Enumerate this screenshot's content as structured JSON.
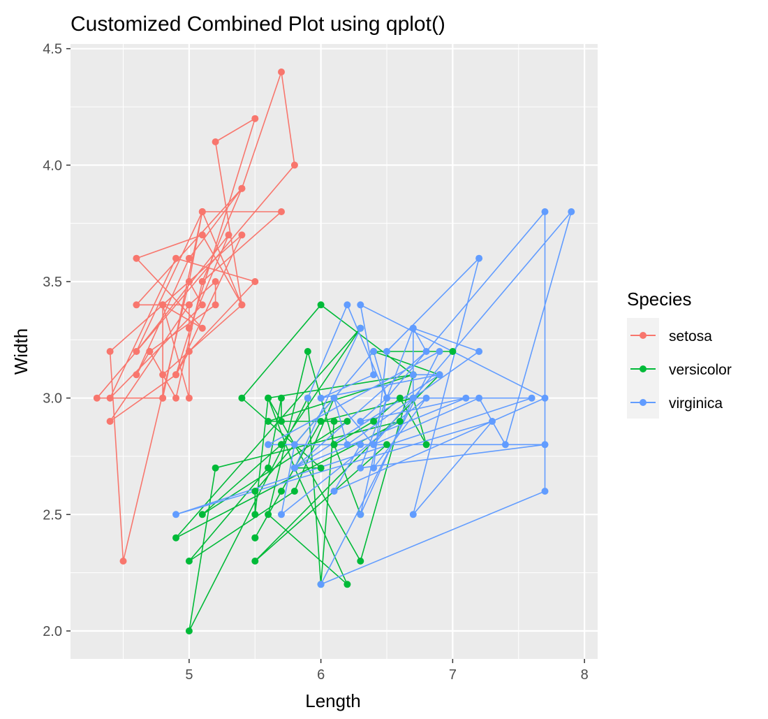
{
  "chart_data": {
    "type": "line",
    "title": "Customized Combined Plot using qplot()",
    "xlabel": "Length",
    "ylabel": "Width",
    "xlim": [
      4.1,
      8.1
    ],
    "ylim": [
      1.88,
      4.52
    ],
    "x_ticks": [
      5,
      6,
      7,
      8
    ],
    "y_ticks": [
      2.0,
      2.5,
      3.0,
      3.5,
      4.0,
      4.5
    ],
    "x_tick_labels": [
      "5",
      "6",
      "7",
      "8"
    ],
    "y_tick_labels": [
      "2.0",
      "2.5",
      "3.0",
      "3.5",
      "4.0",
      "4.5"
    ],
    "grid": true,
    "markers": true,
    "legend": {
      "title": "Species",
      "position": "right"
    },
    "series": [
      {
        "name": "setosa",
        "color": "#F8766D",
        "x": [
          5.1,
          4.9,
          4.7,
          4.6,
          5.0,
          5.4,
          4.6,
          5.0,
          4.4,
          4.9,
          5.4,
          4.8,
          4.8,
          4.3,
          5.8,
          5.7,
          5.4,
          5.1,
          5.7,
          5.1,
          5.4,
          5.1,
          4.6,
          5.1,
          4.8,
          5.0,
          5.0,
          5.2,
          5.2,
          4.7,
          4.8,
          5.4,
          5.2,
          5.5,
          4.9,
          5.0,
          5.5,
          4.9,
          4.4,
          5.1,
          5.0,
          4.5,
          4.4,
          5.0,
          5.1,
          4.8,
          5.1,
          4.6,
          5.3,
          5.0
        ],
        "y": [
          3.5,
          3.0,
          3.2,
          3.1,
          3.6,
          3.9,
          3.4,
          3.4,
          2.9,
          3.1,
          3.7,
          3.4,
          3.0,
          3.0,
          4.0,
          4.4,
          3.9,
          3.5,
          3.8,
          3.8,
          3.4,
          3.7,
          3.6,
          3.3,
          3.4,
          3.0,
          3.4,
          3.5,
          3.4,
          3.2,
          3.1,
          3.4,
          4.1,
          4.2,
          3.1,
          3.2,
          3.5,
          3.6,
          3.0,
          3.4,
          3.5,
          2.3,
          3.2,
          3.5,
          3.8,
          3.0,
          3.8,
          3.2,
          3.7,
          3.3
        ]
      },
      {
        "name": "versicolor",
        "color": "#00BA38",
        "x": [
          7.0,
          6.4,
          6.9,
          5.5,
          6.5,
          5.7,
          6.3,
          4.9,
          6.6,
          5.2,
          5.0,
          5.9,
          6.0,
          6.1,
          5.6,
          6.7,
          5.6,
          5.8,
          6.2,
          5.6,
          5.9,
          6.1,
          6.3,
          6.1,
          6.4,
          6.6,
          6.8,
          6.7,
          6.0,
          5.7,
          5.5,
          5.5,
          5.8,
          6.0,
          5.4,
          6.0,
          6.7,
          6.3,
          5.6,
          5.5,
          5.5,
          6.1,
          5.8,
          5.0,
          5.6,
          5.7,
          5.7,
          6.2,
          5.1,
          5.7
        ],
        "y": [
          3.2,
          3.2,
          3.1,
          2.3,
          2.8,
          2.8,
          3.3,
          2.4,
          2.9,
          2.7,
          2.0,
          3.0,
          2.2,
          2.9,
          2.9,
          3.1,
          3.0,
          2.7,
          2.2,
          2.5,
          3.2,
          2.8,
          2.5,
          2.8,
          2.9,
          3.0,
          2.8,
          3.0,
          2.9,
          2.6,
          2.4,
          2.4,
          2.7,
          2.7,
          3.0,
          3.4,
          3.1,
          2.3,
          3.0,
          2.5,
          2.6,
          3.0,
          2.6,
          2.3,
          2.7,
          3.0,
          2.9,
          2.9,
          2.5,
          2.8
        ]
      },
      {
        "name": "virginica",
        "color": "#619CFF",
        "x": [
          6.3,
          5.8,
          7.1,
          6.3,
          6.5,
          7.6,
          4.9,
          7.3,
          6.7,
          7.2,
          6.5,
          6.4,
          6.8,
          5.7,
          5.8,
          6.4,
          6.5,
          7.7,
          7.7,
          6.0,
          6.9,
          5.6,
          7.7,
          6.3,
          6.7,
          7.2,
          6.2,
          6.1,
          6.4,
          7.2,
          7.4,
          7.9,
          6.4,
          6.3,
          6.1,
          7.7,
          6.3,
          6.4,
          6.0,
          6.9,
          6.7,
          6.9,
          5.8,
          6.8,
          6.7,
          6.7,
          6.3,
          6.5,
          6.2,
          5.9
        ],
        "y": [
          3.3,
          2.7,
          3.0,
          2.9,
          3.0,
          3.0,
          2.5,
          2.9,
          2.5,
          3.6,
          3.2,
          2.7,
          3.0,
          2.5,
          2.8,
          3.2,
          3.0,
          3.8,
          2.6,
          2.2,
          3.2,
          2.8,
          2.8,
          2.7,
          3.3,
          3.2,
          2.8,
          3.0,
          2.8,
          3.0,
          2.8,
          3.8,
          2.8,
          2.8,
          2.6,
          3.0,
          3.4,
          3.1,
          3.0,
          3.1,
          3.1,
          3.1,
          2.7,
          3.2,
          3.3,
          3.0,
          2.5,
          3.0,
          3.4,
          3.0
        ]
      }
    ]
  }
}
